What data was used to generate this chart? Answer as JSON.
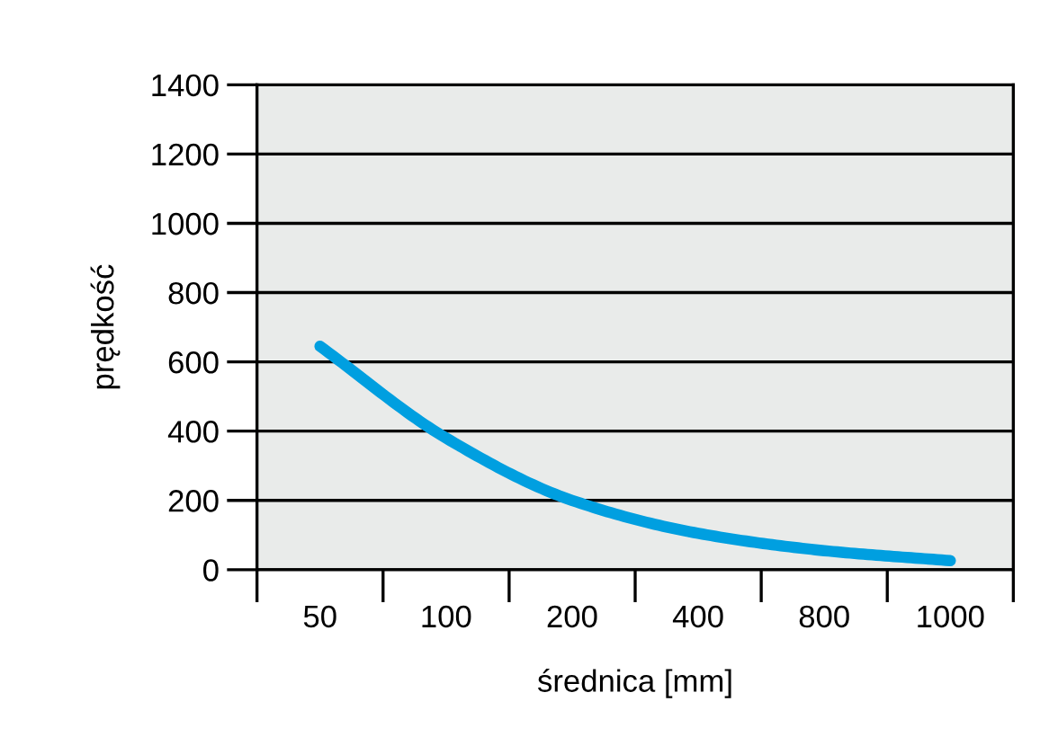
{
  "chart_data": {
    "type": "line",
    "xlabel": "średnica [mm]",
    "ylabel": "prędkość",
    "categories": [
      "50",
      "100",
      "200",
      "400",
      "800",
      "1000"
    ],
    "series": [
      {
        "color": "#009fe0",
        "values": [
          645,
          380,
          200,
          105,
          55,
          26
        ]
      }
    ],
    "ylim": [
      0,
      1400
    ],
    "yticks": [
      0,
      200,
      400,
      600,
      800,
      1000,
      1200,
      1400
    ],
    "grid": "y",
    "line_style": "solid",
    "marker": "none",
    "legend": false
  }
}
